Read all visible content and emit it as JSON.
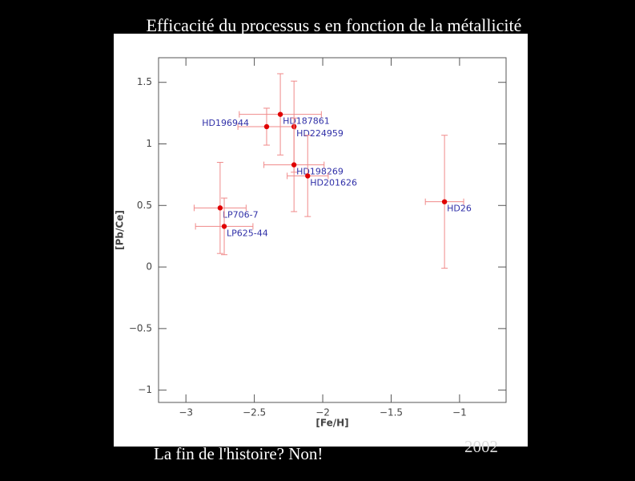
{
  "chart_data": {
    "type": "scatter",
    "title": "Efficacité du processus s en fonction de la métallicité",
    "x_label": "[Fe/H]",
    "y_label": "[Pb/Ce]",
    "footer": "La fin de l'histoire? Non!",
    "year": "2002",
    "xlim": [
      -3.2,
      -0.66
    ],
    "ylim": [
      -1.1,
      1.7
    ],
    "xticks": [
      {
        "value": -3,
        "label": "−3"
      },
      {
        "value": -2.5,
        "label": "−2.5"
      },
      {
        "value": -2,
        "label": "−2"
      },
      {
        "value": -1.5,
        "label": "−1.5"
      },
      {
        "value": -1,
        "label": "−1"
      }
    ],
    "yticks": [
      {
        "value": -1,
        "label": "−1"
      },
      {
        "value": -0.5,
        "label": "−0.5"
      },
      0,
      0.5,
      1,
      1.5
    ],
    "series": [
      {
        "color": "#e00000",
        "error_color": "#f08a8a",
        "label_color": "#3030a8",
        "labels": [
          "HD196944",
          "HD187861",
          "HD224959",
          "HD198269",
          "HD201626",
          "HD26",
          "LP706-7",
          "LP625-44"
        ],
        "x": [
          -2.41,
          -2.31,
          -2.21,
          -2.21,
          -2.11,
          -1.11,
          -2.75,
          -2.72
        ],
        "values": [
          1.14,
          1.24,
          1.14,
          0.83,
          0.74,
          0.53,
          0.48,
          0.33
        ],
        "xerr": [
          0.21,
          0.3,
          0,
          0.22,
          0.15,
          0.14,
          0.19,
          0.21
        ],
        "yerr": [
          0.15,
          0.33,
          0.37,
          0.38,
          0.33,
          0.54,
          0.37,
          0.23
        ]
      }
    ]
  }
}
